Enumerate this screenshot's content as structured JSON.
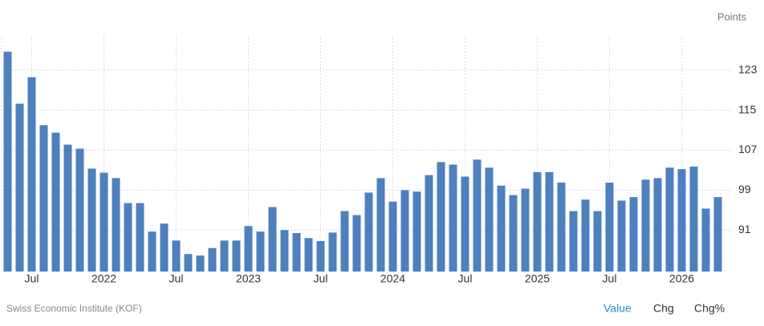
{
  "chart_data": {
    "type": "bar",
    "unit_label": "Points",
    "categories": [
      null,
      null,
      "Jul",
      null,
      null,
      null,
      null,
      null,
      "2022",
      null,
      null,
      null,
      null,
      null,
      "Jul",
      null,
      null,
      null,
      null,
      null,
      "2023",
      null,
      null,
      null,
      null,
      null,
      "Jul",
      null,
      null,
      null,
      null,
      null,
      "2024",
      null,
      null,
      null,
      null,
      null,
      "Jul",
      null,
      null,
      null,
      null,
      null,
      "2025",
      null,
      null,
      null,
      null,
      null,
      "Jul",
      null,
      null,
      null,
      null,
      null,
      "2026",
      null,
      null,
      null
    ],
    "values": [
      126.7,
      116.3,
      121.6,
      112,
      110.5,
      108.1,
      107.3,
      103.3,
      102.5,
      101.4,
      96.4,
      96.4,
      90.7,
      92.3,
      88.9,
      86.2,
      85.9,
      87.4,
      88.9,
      88.9,
      91.8,
      90.7,
      95.6,
      91,
      90.4,
      89.4,
      88.8,
      90.5,
      94.8,
      94,
      98.5,
      101.4,
      96.7,
      99,
      98.7,
      102,
      104.6,
      104.1,
      101.7,
      105.1,
      103.5,
      99.9,
      98,
      99.3,
      102.6,
      102.6,
      100.5,
      94.8,
      97.1,
      94.8,
      100.5,
      96.9,
      97.6,
      101.1,
      101.4,
      103.5,
      103.2,
      103.7,
      95.3,
      97.6
    ],
    "color": "#4e7fbf",
    "ylim": [
      82.7,
      130
    ],
    "yticks": [
      91,
      99,
      107,
      115,
      123
    ],
    "grid": true
  },
  "source": "Swiss Economic Institute (KOF)",
  "tabs": [
    "Value",
    "Chg",
    "Chg%"
  ]
}
